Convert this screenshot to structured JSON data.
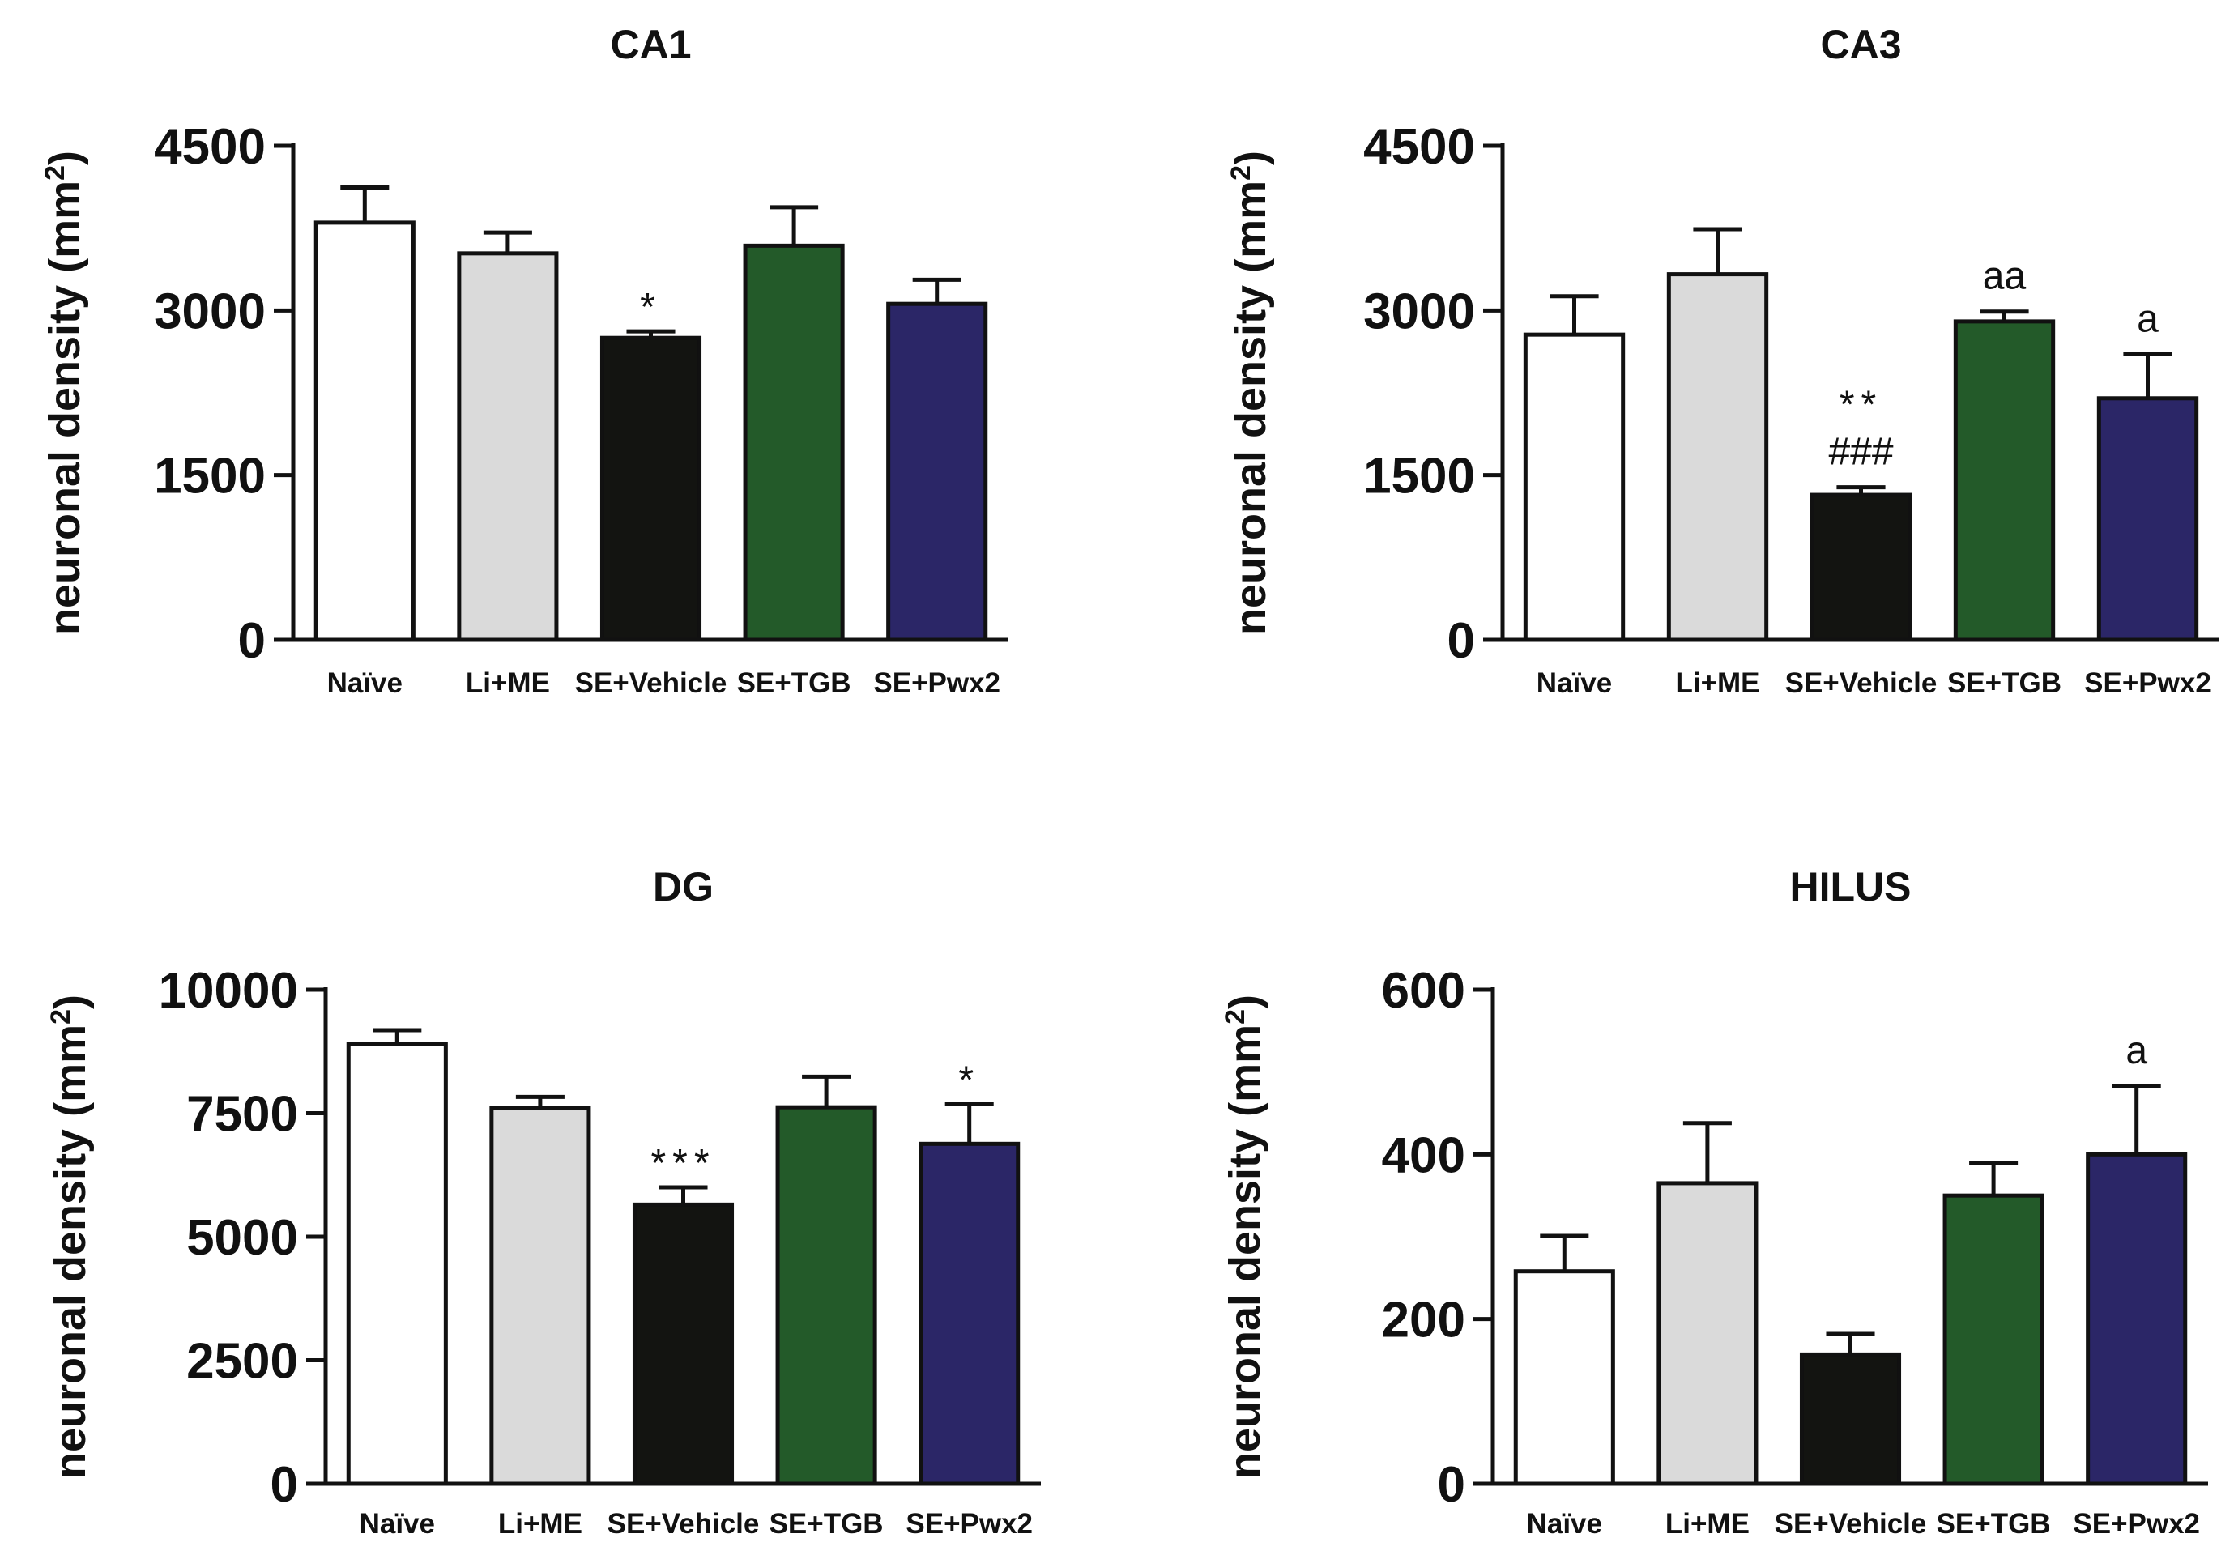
{
  "colors": {
    "Naïve": "#ffffff",
    "Li+ME": "#dadada",
    "SE+Vehicle": "#131411",
    "SE+TGB": "#235a29",
    "SE+Pwx2": "#2b2667"
  },
  "chart_data": [
    {
      "type": "bar",
      "title": "CA1",
      "ylabel": "neuronal density (mm",
      "ylabel_sup": "2",
      "ylabel_close": ")",
      "categories": [
        "Naïve",
        "Li+ME",
        "SE+Vehicle",
        "SE+TGB",
        "SE+Pwx2"
      ],
      "values": [
        3800,
        3520,
        2750,
        3590,
        3060
      ],
      "errors": [
        320,
        190,
        60,
        350,
        220
      ],
      "annotations": [
        "",
        "",
        "*",
        "",
        ""
      ],
      "ylim": [
        0,
        4500
      ],
      "yticks": [
        0,
        1500,
        3000,
        4500
      ]
    },
    {
      "type": "bar",
      "title": "CA3",
      "ylabel": "neuronal density (mm",
      "ylabel_sup": "2",
      "ylabel_close": ")",
      "categories": [
        "Naïve",
        "Li+ME",
        "SE+Vehicle",
        "SE+TGB",
        "SE+Pwx2"
      ],
      "values": [
        2780,
        3330,
        1320,
        2900,
        2200
      ],
      "errors": [
        350,
        410,
        70,
        90,
        400
      ],
      "annotations": [
        "",
        "",
        "**\n###",
        "aa",
        "a"
      ],
      "ylim": [
        0,
        4500
      ],
      "yticks": [
        0,
        1500,
        3000,
        4500
      ]
    },
    {
      "type": "bar",
      "title": "DG",
      "ylabel": "neuronal density (mm",
      "ylabel_sup": "2",
      "ylabel_close": ")",
      "categories": [
        "Naïve",
        "Li+ME",
        "SE+Vehicle",
        "SE+TGB",
        "SE+Pwx2"
      ],
      "values": [
        8900,
        7600,
        5650,
        7620,
        6880
      ],
      "errors": [
        280,
        230,
        350,
        620,
        800
      ],
      "annotations": [
        "",
        "",
        "***",
        "",
        "*"
      ],
      "ylim": [
        0,
        10000
      ],
      "yticks": [
        0,
        2500,
        5000,
        7500,
        10000
      ]
    },
    {
      "type": "bar",
      "title": "HILUS",
      "ylabel": "neuronal density (mm",
      "ylabel_sup": "2",
      "ylabel_close": ")",
      "categories": [
        "Naïve",
        "Li+ME",
        "SE+Vehicle",
        "SE+TGB",
        "SE+Pwx2"
      ],
      "values": [
        258,
        365,
        157,
        350,
        400
      ],
      "errors": [
        43,
        73,
        25,
        40,
        83
      ],
      "annotations": [
        "",
        "",
        "",
        "",
        "a"
      ],
      "ylim": [
        0,
        600
      ],
      "yticks": [
        0,
        200,
        400,
        600
      ]
    }
  ]
}
